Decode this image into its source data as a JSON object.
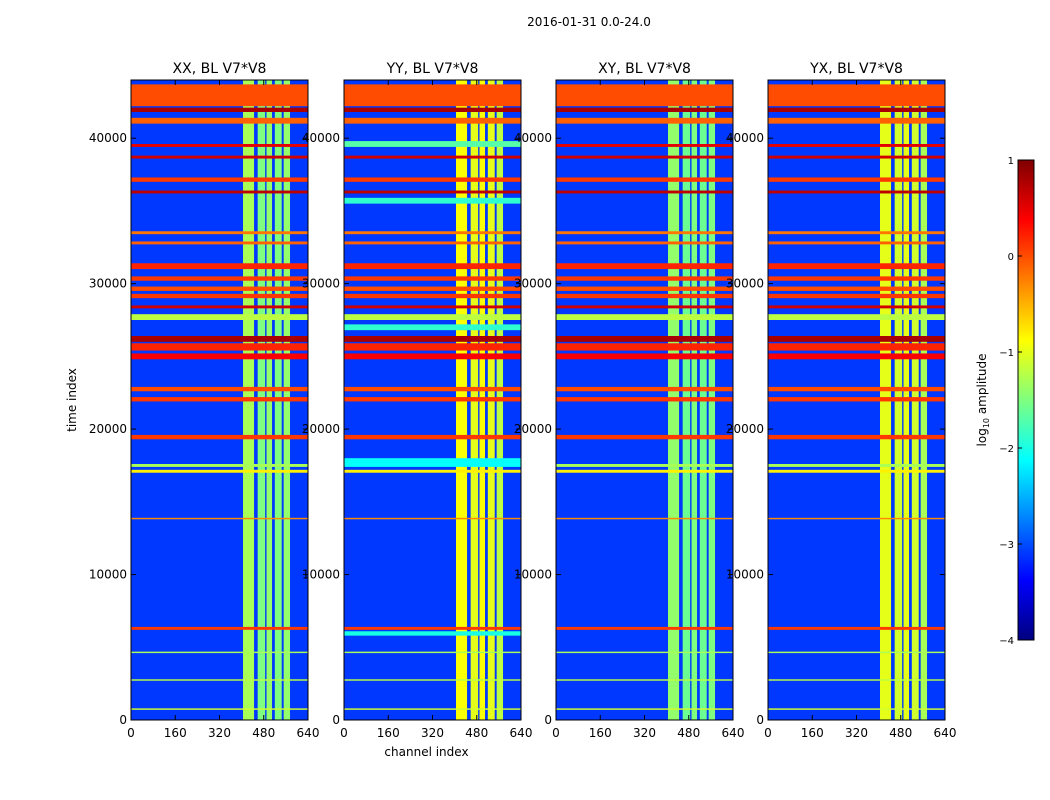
{
  "figure": {
    "suptitle": "2016-01-31 0.0-24.0"
  },
  "colormap": [
    "#00007f",
    "#0000ff",
    "#007fff",
    "#00ffff",
    "#7fff7f",
    "#ffff00",
    "#ff7f00",
    "#ff0000",
    "#7f0000"
  ],
  "chart_data": {
    "type": "heatmap",
    "xlabel": "channel index",
    "ylabel": "time index",
    "xlim": [
      0,
      640
    ],
    "ylim": [
      0,
      44000
    ],
    "xticks": [
      0,
      160,
      320,
      480,
      640
    ],
    "yticks": [
      0,
      10000,
      20000,
      30000,
      40000
    ],
    "colorbar": {
      "label": "log10 amplitude",
      "label_main": "log",
      "label_sub": "10",
      "label_rest": " amplitude",
      "range": [
        -4,
        1
      ],
      "ticks": [
        1,
        0,
        -1,
        -2,
        -3,
        -4
      ],
      "tick_labels": [
        "1",
        "0",
        "−1",
        "−2",
        "−3",
        "−4"
      ]
    },
    "background_level": -3.1,
    "panels": [
      {
        "title": "XX, BL V7*V8",
        "show_xlabel": false,
        "vbands": [
          [
            405,
            445,
            -1.3
          ],
          [
            458,
            485,
            -1.5
          ],
          [
            490,
            510,
            -1.4
          ],
          [
            520,
            545,
            -1.5
          ],
          [
            552,
            575,
            -1.4
          ]
        ],
        "hbands": [
          [
            42200,
            43700,
            0.0
          ],
          [
            41800,
            42100,
            0.8
          ],
          [
            41000,
            41400,
            -0.1
          ],
          [
            39400,
            39600,
            0.5
          ],
          [
            38600,
            38800,
            0.6
          ],
          [
            37000,
            37300,
            0.1
          ],
          [
            36200,
            36400,
            0.7
          ],
          [
            33400,
            33600,
            -0.2
          ],
          [
            32700,
            32900,
            -0.1
          ],
          [
            31000,
            31400,
            0.2
          ],
          [
            30200,
            30500,
            0.1
          ],
          [
            29500,
            29800,
            0.0
          ],
          [
            29000,
            29300,
            0.1
          ],
          [
            28300,
            28500,
            0.6
          ],
          [
            27500,
            27900,
            -1.2
          ],
          [
            26000,
            26400,
            0.8
          ],
          [
            25400,
            25900,
            0.2
          ],
          [
            24800,
            25200,
            0.4
          ],
          [
            22600,
            22900,
            0.0
          ],
          [
            21900,
            22200,
            0.1
          ],
          [
            19300,
            19600,
            0.1
          ],
          [
            17400,
            17600,
            -1.3
          ],
          [
            17000,
            17200,
            -0.8
          ],
          [
            13800,
            13900,
            -0.3
          ],
          [
            6200,
            6400,
            0.1
          ],
          [
            4600,
            4700,
            -1.3
          ],
          [
            2700,
            2800,
            -1.2
          ],
          [
            700,
            800,
            -1.1
          ]
        ]
      },
      {
        "title": "YY, BL V7*V8",
        "show_xlabel": true,
        "vbands": [
          [
            405,
            445,
            -0.9
          ],
          [
            458,
            485,
            -1.0
          ],
          [
            490,
            510,
            -0.9
          ],
          [
            520,
            545,
            -1.0
          ],
          [
            552,
            575,
            -1.2
          ]
        ],
        "hbands": [
          [
            42200,
            43700,
            0.0
          ],
          [
            41800,
            42100,
            0.8
          ],
          [
            41000,
            41400,
            -0.1
          ],
          [
            39400,
            39800,
            -1.7
          ],
          [
            38600,
            38800,
            0.6
          ],
          [
            37000,
            37300,
            0.1
          ],
          [
            36200,
            36400,
            0.7
          ],
          [
            35500,
            35900,
            -1.9
          ],
          [
            33400,
            33600,
            -0.2
          ],
          [
            32700,
            32900,
            -0.1
          ],
          [
            31000,
            31400,
            0.2
          ],
          [
            30200,
            30500,
            0.1
          ],
          [
            29500,
            29800,
            0.0
          ],
          [
            29000,
            29300,
            0.1
          ],
          [
            28300,
            28500,
            0.6
          ],
          [
            27500,
            27900,
            -1.2
          ],
          [
            26800,
            27200,
            -1.9
          ],
          [
            26000,
            26400,
            0.8
          ],
          [
            25400,
            25900,
            0.2
          ],
          [
            24800,
            25200,
            0.4
          ],
          [
            22600,
            22900,
            0.0
          ],
          [
            21900,
            22200,
            0.1
          ],
          [
            19300,
            19600,
            0.1
          ],
          [
            17400,
            18000,
            -2.1
          ],
          [
            17000,
            17200,
            -0.8
          ],
          [
            13800,
            13900,
            -0.3
          ],
          [
            6200,
            6400,
            0.1
          ],
          [
            5800,
            6100,
            -2.0
          ],
          [
            4600,
            4700,
            -1.3
          ],
          [
            2700,
            2800,
            -1.2
          ],
          [
            700,
            800,
            -1.1
          ]
        ]
      },
      {
        "title": "XY, BL V7*V8",
        "show_xlabel": false,
        "vbands": [
          [
            405,
            445,
            -1.4
          ],
          [
            458,
            485,
            -1.6
          ],
          [
            490,
            510,
            -1.5
          ],
          [
            520,
            545,
            -1.6
          ],
          [
            552,
            575,
            -1.5
          ]
        ],
        "hbands": [
          [
            42200,
            43700,
            0.0
          ],
          [
            41800,
            42100,
            0.8
          ],
          [
            41000,
            41400,
            -0.1
          ],
          [
            39400,
            39600,
            0.5
          ],
          [
            38600,
            38800,
            0.6
          ],
          [
            37000,
            37300,
            0.1
          ],
          [
            36200,
            36400,
            0.7
          ],
          [
            33400,
            33600,
            -0.2
          ],
          [
            32700,
            32900,
            -0.1
          ],
          [
            31000,
            31400,
            0.2
          ],
          [
            30200,
            30500,
            0.1
          ],
          [
            29500,
            29800,
            0.0
          ],
          [
            29000,
            29300,
            0.1
          ],
          [
            28300,
            28500,
            0.6
          ],
          [
            27500,
            27900,
            -1.2
          ],
          [
            26000,
            26400,
            0.8
          ],
          [
            25400,
            25900,
            0.2
          ],
          [
            24800,
            25200,
            0.4
          ],
          [
            22600,
            22900,
            0.0
          ],
          [
            21900,
            22200,
            0.1
          ],
          [
            19300,
            19600,
            0.1
          ],
          [
            17400,
            17600,
            -1.3
          ],
          [
            17000,
            17200,
            -0.8
          ],
          [
            13800,
            13900,
            -0.3
          ],
          [
            6200,
            6400,
            0.1
          ],
          [
            4600,
            4700,
            -1.3
          ],
          [
            2700,
            2800,
            -1.2
          ],
          [
            700,
            800,
            -1.1
          ]
        ]
      },
      {
        "title": "YX, BL V7*V8",
        "show_xlabel": false,
        "vbands": [
          [
            405,
            445,
            -1.0
          ],
          [
            458,
            485,
            -1.1
          ],
          [
            490,
            510,
            -1.0
          ],
          [
            520,
            545,
            -1.1
          ],
          [
            552,
            575,
            -1.3
          ]
        ],
        "hbands": [
          [
            42200,
            43700,
            0.0
          ],
          [
            41800,
            42100,
            0.8
          ],
          [
            41000,
            41400,
            -0.1
          ],
          [
            39400,
            39600,
            0.5
          ],
          [
            38600,
            38800,
            0.6
          ],
          [
            37000,
            37300,
            0.1
          ],
          [
            36200,
            36400,
            0.7
          ],
          [
            33400,
            33600,
            -0.2
          ],
          [
            32700,
            32900,
            -0.1
          ],
          [
            31000,
            31400,
            0.2
          ],
          [
            30200,
            30500,
            0.1
          ],
          [
            29500,
            29800,
            0.0
          ],
          [
            29000,
            29300,
            0.1
          ],
          [
            28300,
            28500,
            0.6
          ],
          [
            27500,
            27900,
            -1.2
          ],
          [
            26000,
            26400,
            0.8
          ],
          [
            25400,
            25900,
            0.2
          ],
          [
            24800,
            25200,
            0.4
          ],
          [
            22600,
            22900,
            0.0
          ],
          [
            21900,
            22200,
            0.1
          ],
          [
            19300,
            19600,
            0.1
          ],
          [
            17400,
            17600,
            -1.3
          ],
          [
            17000,
            17200,
            -0.8
          ],
          [
            13800,
            13900,
            -0.3
          ],
          [
            6200,
            6400,
            0.1
          ],
          [
            4600,
            4700,
            -1.3
          ],
          [
            2700,
            2800,
            -1.2
          ],
          [
            700,
            800,
            -1.1
          ]
        ]
      }
    ]
  }
}
